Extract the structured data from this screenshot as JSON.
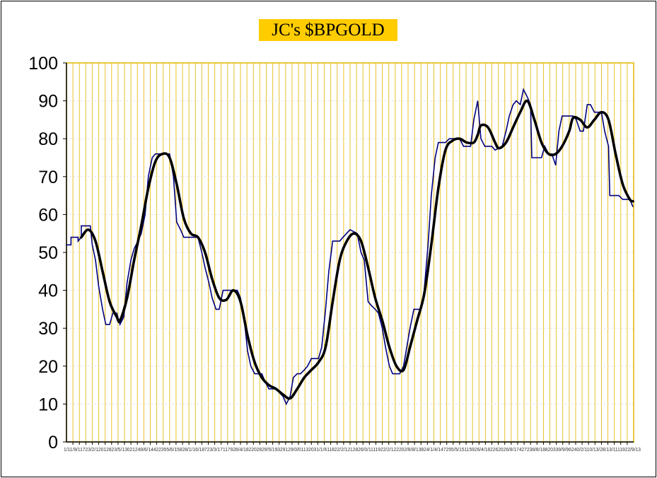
{
  "chart_data": {
    "type": "line",
    "title": "JC's $BPGOLD",
    "xlabel": "",
    "ylabel": "",
    "ylim": [
      0,
      100
    ],
    "yticks": [
      "0",
      "10",
      "20",
      "30",
      "40",
      "50",
      "60",
      "70",
      "80",
      "90",
      "100"
    ],
    "xlim": [
      0,
      88
    ],
    "x_tick_text": "1/11/9/11723/2/12012823/5/13021249/6/14422355/6/15828/1/16/18723/3/17117928/4/182202829/5/19329129/0/01132031/1/611822/2/1212826/0/1111922/2/122202/8/8/13824/1/4/147255/5/15115926/4/182262026/8/17427238/8/18820339/9/96240/2/110/13/28/13/1111922/9/13",
    "grid": {
      "vertical": true,
      "horizontal": "dotted"
    },
    "colors": {
      "title_bg": "#FFCC00",
      "grid": "#E8C22A",
      "series_raw": "#000080",
      "series_smooth": "#000000",
      "plot_border": "#E0B800"
    },
    "series": [
      {
        "style": "thin-navy-step",
        "points": [
          [
            0,
            52
          ],
          [
            0.7,
            52
          ],
          [
            0.7,
            54
          ],
          [
            1.8,
            54
          ],
          [
            1.8,
            53
          ],
          [
            2.3,
            54
          ],
          [
            2.3,
            57
          ],
          [
            3.7,
            57
          ],
          [
            4.0,
            52
          ],
          [
            4.5,
            48
          ],
          [
            5.0,
            41
          ],
          [
            5.6,
            35
          ],
          [
            6.1,
            31
          ],
          [
            6.7,
            31
          ],
          [
            7.2,
            34
          ],
          [
            7.8,
            34
          ],
          [
            8.3,
            31
          ],
          [
            8.9,
            33
          ],
          [
            9.4,
            42
          ],
          [
            10.0,
            48
          ],
          [
            10.5,
            51
          ],
          [
            11.1,
            53
          ],
          [
            11.6,
            55
          ],
          [
            12.2,
            60
          ],
          [
            12.7,
            70
          ],
          [
            13.3,
            75
          ],
          [
            13.8,
            76
          ],
          [
            14.9,
            76
          ],
          [
            16.0,
            76
          ],
          [
            16.6,
            70
          ],
          [
            17.1,
            58
          ],
          [
            17.7,
            56
          ],
          [
            18.2,
            54
          ],
          [
            19.3,
            54
          ],
          [
            20.4,
            54
          ],
          [
            21.0,
            50
          ],
          [
            21.5,
            46
          ],
          [
            22.1,
            42
          ],
          [
            22.6,
            38
          ],
          [
            23.2,
            35
          ],
          [
            23.7,
            35
          ],
          [
            24.3,
            40
          ],
          [
            25.4,
            40
          ],
          [
            26.5,
            40
          ],
          [
            27.0,
            38
          ],
          [
            27.6,
            32
          ],
          [
            28.1,
            24
          ],
          [
            28.6,
            20
          ],
          [
            29.2,
            18
          ],
          [
            30.3,
            18
          ],
          [
            30.8,
            16
          ],
          [
            31.4,
            14
          ],
          [
            32.5,
            14
          ],
          [
            33.6,
            12
          ],
          [
            34.1,
            10
          ],
          [
            34.7,
            12
          ],
          [
            35.2,
            17
          ],
          [
            35.8,
            18
          ],
          [
            36.3,
            18
          ],
          [
            36.9,
            19
          ],
          [
            37.4,
            20
          ],
          [
            38.0,
            22
          ],
          [
            39.1,
            22
          ],
          [
            39.6,
            25
          ],
          [
            40.2,
            35
          ],
          [
            40.7,
            45
          ],
          [
            41.3,
            53
          ],
          [
            42.4,
            53
          ],
          [
            42.9,
            54
          ],
          [
            44.0,
            56
          ],
          [
            45.1,
            55
          ],
          [
            45.7,
            50
          ],
          [
            46.2,
            48
          ],
          [
            46.8,
            37
          ],
          [
            47.3,
            36
          ],
          [
            47.9,
            35
          ],
          [
            48.4,
            34
          ],
          [
            49.0,
            30
          ],
          [
            49.5,
            25
          ],
          [
            50.1,
            20
          ],
          [
            50.6,
            18
          ],
          [
            51.7,
            18
          ],
          [
            52.3,
            20
          ],
          [
            52.8,
            25
          ],
          [
            53.3,
            30
          ],
          [
            53.9,
            35
          ],
          [
            55.0,
            35
          ],
          [
            55.5,
            40
          ],
          [
            56.1,
            52
          ],
          [
            56.6,
            65
          ],
          [
            57.2,
            75
          ],
          [
            57.7,
            79
          ],
          [
            58.8,
            79
          ],
          [
            59.4,
            80
          ],
          [
            61.0,
            80
          ],
          [
            61.6,
            78
          ],
          [
            62.7,
            78
          ],
          [
            63.2,
            85
          ],
          [
            63.8,
            90
          ],
          [
            64.3,
            80
          ],
          [
            64.9,
            78
          ],
          [
            66.0,
            78
          ],
          [
            66.5,
            77
          ],
          [
            67.6,
            78
          ],
          [
            68.2,
            82
          ],
          [
            68.7,
            86
          ],
          [
            69.3,
            89
          ],
          [
            69.8,
            90
          ],
          [
            70.4,
            89
          ],
          [
            70.9,
            93
          ],
          [
            71.5,
            91
          ],
          [
            72.0,
            89
          ],
          [
            72.2,
            75
          ],
          [
            73.7,
            75
          ],
          [
            74.2,
            78
          ],
          [
            74.8,
            76
          ],
          [
            75.3,
            76
          ],
          [
            75.9,
            73
          ],
          [
            76.4,
            82
          ],
          [
            76.9,
            86
          ],
          [
            78.6,
            86
          ],
          [
            79.1,
            85
          ],
          [
            79.7,
            82
          ],
          [
            80.2,
            82
          ],
          [
            80.8,
            89
          ],
          [
            81.3,
            89
          ],
          [
            81.9,
            87
          ],
          [
            83.0,
            87
          ],
          [
            83.5,
            82
          ],
          [
            84.1,
            78
          ],
          [
            84.3,
            65
          ],
          [
            85.7,
            65
          ],
          [
            86.3,
            64
          ],
          [
            87.4,
            64
          ],
          [
            87.9,
            62
          ]
        ]
      },
      {
        "style": "thick-black-smoothed",
        "points": [
          [
            2.3,
            54
          ],
          [
            3.4,
            56
          ],
          [
            4.5,
            53
          ],
          [
            5.6,
            45
          ],
          [
            6.7,
            37
          ],
          [
            7.8,
            33
          ],
          [
            8.3,
            32
          ],
          [
            9.4,
            38
          ],
          [
            10.5,
            48
          ],
          [
            11.6,
            57
          ],
          [
            12.7,
            67
          ],
          [
            13.8,
            74
          ],
          [
            14.9,
            76
          ],
          [
            16.0,
            75
          ],
          [
            17.1,
            68
          ],
          [
            18.2,
            59
          ],
          [
            19.3,
            55
          ],
          [
            20.4,
            54
          ],
          [
            21.5,
            50
          ],
          [
            22.6,
            43
          ],
          [
            23.7,
            38
          ],
          [
            24.8,
            37.5
          ],
          [
            25.9,
            40
          ],
          [
            27.0,
            37
          ],
          [
            28.1,
            28
          ],
          [
            29.2,
            21
          ],
          [
            30.3,
            17
          ],
          [
            31.4,
            15
          ],
          [
            32.5,
            14
          ],
          [
            33.6,
            12.5
          ],
          [
            34.7,
            11.5
          ],
          [
            35.8,
            14
          ],
          [
            36.9,
            17
          ],
          [
            38.0,
            19
          ],
          [
            39.1,
            21
          ],
          [
            40.2,
            25
          ],
          [
            41.3,
            37
          ],
          [
            42.4,
            48
          ],
          [
            43.5,
            53
          ],
          [
            44.6,
            55
          ],
          [
            45.7,
            53
          ],
          [
            46.8,
            46
          ],
          [
            47.9,
            38
          ],
          [
            49.0,
            32
          ],
          [
            50.1,
            25
          ],
          [
            51.2,
            20
          ],
          [
            52.3,
            19
          ],
          [
            53.3,
            25
          ],
          [
            54.4,
            32
          ],
          [
            55.5,
            39
          ],
          [
            56.6,
            52
          ],
          [
            57.7,
            67
          ],
          [
            58.8,
            77
          ],
          [
            59.9,
            79.5
          ],
          [
            61.0,
            80
          ],
          [
            62.1,
            79
          ],
          [
            63.2,
            79
          ],
          [
            63.8,
            81
          ],
          [
            64.3,
            83.5
          ],
          [
            65.4,
            83
          ],
          [
            66.5,
            79
          ],
          [
            67.1,
            77.5
          ],
          [
            68.2,
            79
          ],
          [
            69.3,
            83
          ],
          [
            70.4,
            87
          ],
          [
            71.5,
            90
          ],
          [
            72.6,
            85
          ],
          [
            73.7,
            79
          ],
          [
            74.8,
            76
          ],
          [
            75.9,
            76
          ],
          [
            76.9,
            78
          ],
          [
            78.0,
            82
          ],
          [
            78.6,
            85.5
          ],
          [
            79.7,
            85
          ],
          [
            80.8,
            83
          ],
          [
            81.9,
            85
          ],
          [
            83.0,
            87
          ],
          [
            84.1,
            85
          ],
          [
            85.2,
            76
          ],
          [
            86.3,
            68
          ],
          [
            87.4,
            64
          ],
          [
            87.9,
            63.5
          ]
        ]
      }
    ]
  }
}
